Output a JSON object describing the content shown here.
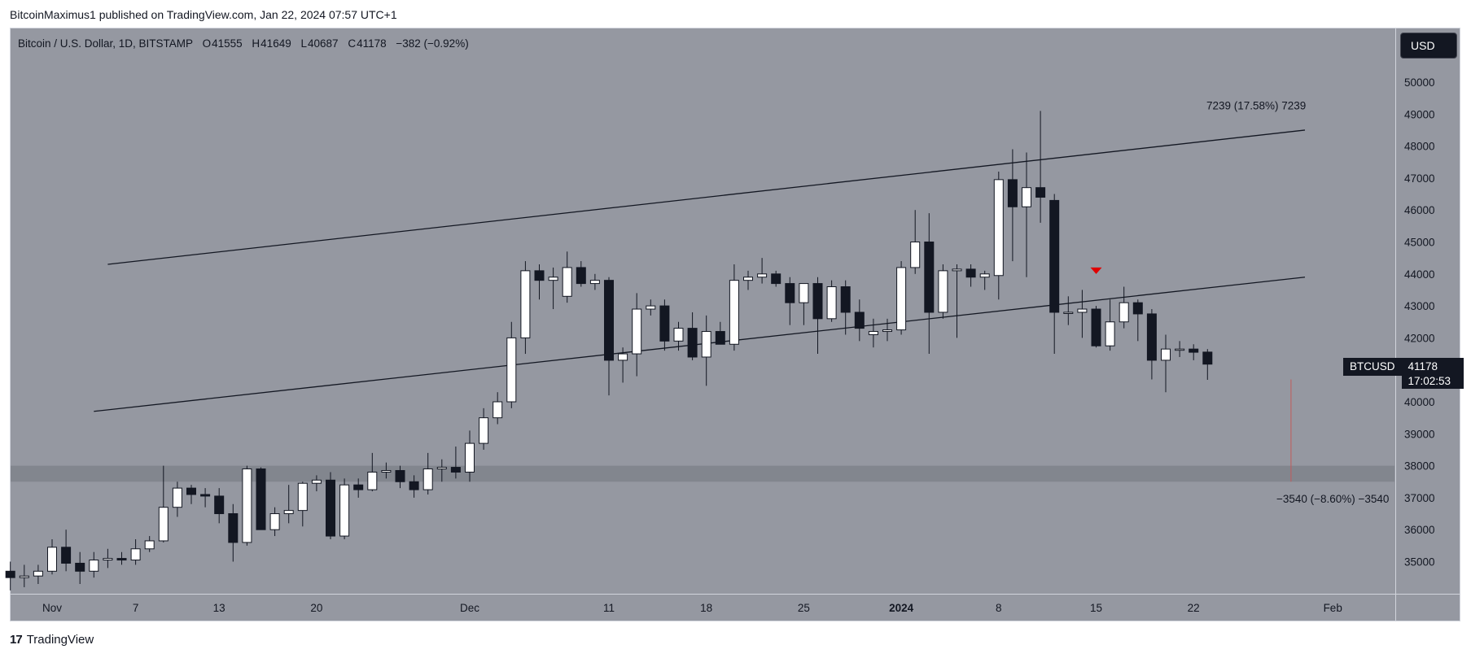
{
  "header": {
    "published_line": "BitcoinMaximus1 published on TradingView.com, Jan 22, 2024 07:57 UTC+1"
  },
  "legend": {
    "symbol_line": "Bitcoin / U.S. Dollar, 1D, BITSTAMP",
    "o_label": "O",
    "o_value": "41555",
    "h_label": "H",
    "h_value": "41649",
    "l_label": "L",
    "l_value": "40687",
    "c_label": "C",
    "c_value": "41178",
    "change": "−382 (−0.92%)"
  },
  "currency_button": "USD",
  "price_tag": {
    "symbol": "BTCUSD",
    "price": "41178",
    "countdown": "17:02:53"
  },
  "footer": {
    "logo_mark": "17",
    "logo_text": "TradingView"
  },
  "colors": {
    "background": "#9598a1",
    "bull_body": "#ffffff",
    "bear_body": "#131722",
    "support_zone": "#7f828b",
    "marker": "#e00000",
    "measure_line": "#c25b5b"
  },
  "chart_data": {
    "type": "candlestick",
    "ylim": [
      33800,
      51200
    ],
    "y_ticks": [
      "35000",
      "36000",
      "37000",
      "38000",
      "39000",
      "40000",
      "41000",
      "42000",
      "43000",
      "44000",
      "45000",
      "46000",
      "47000",
      "48000",
      "49000",
      "50000"
    ],
    "x_ticks": [
      {
        "label": "Nov",
        "day": 0,
        "bold": false
      },
      {
        "label": "7",
        "day": 6,
        "bold": false
      },
      {
        "label": "13",
        "day": 12,
        "bold": false
      },
      {
        "label": "20",
        "day": 19,
        "bold": false
      },
      {
        "label": "Dec",
        "day": 30,
        "bold": false
      },
      {
        "label": "11",
        "day": 40,
        "bold": false
      },
      {
        "label": "18",
        "day": 47,
        "bold": false
      },
      {
        "label": "25",
        "day": 54,
        "bold": false
      },
      {
        "label": "2024",
        "day": 61,
        "bold": true
      },
      {
        "label": "8",
        "day": 68,
        "bold": false
      },
      {
        "label": "15",
        "day": 75,
        "bold": false
      },
      {
        "label": "22",
        "day": 82,
        "bold": false
      },
      {
        "label": "Feb",
        "day": 92,
        "bold": false
      }
    ],
    "first_day": -3,
    "candles": [
      [
        34700,
        35000,
        34100,
        34500
      ],
      [
        34500,
        34900,
        34200,
        34550
      ],
      [
        34550,
        34900,
        34300,
        34700
      ],
      [
        34700,
        35700,
        34600,
        35450
      ],
      [
        35450,
        36000,
        34700,
        34950
      ],
      [
        34950,
        35300,
        34300,
        34700
      ],
      [
        34700,
        35300,
        34500,
        35050
      ],
      [
        35050,
        35400,
        34800,
        35100
      ],
      [
        35100,
        35300,
        34900,
        35050
      ],
      [
        35050,
        35700,
        34900,
        35400
      ],
      [
        35400,
        35800,
        35300,
        35650
      ],
      [
        35650,
        38000,
        35600,
        36700
      ],
      [
        36700,
        37500,
        36400,
        37300
      ],
      [
        37300,
        37400,
        36800,
        37100
      ],
      [
        37100,
        37300,
        36700,
        37050
      ],
      [
        37050,
        37300,
        36200,
        36500
      ],
      [
        36500,
        36800,
        35000,
        35600
      ],
      [
        35600,
        38000,
        35500,
        37900
      ],
      [
        37900,
        37950,
        36100,
        36000
      ],
      [
        36000,
        36700,
        35800,
        36500
      ],
      [
        36500,
        37400,
        36200,
        36600
      ],
      [
        36600,
        37500,
        36100,
        37450
      ],
      [
        37450,
        37700,
        37200,
        37550
      ],
      [
        37550,
        37800,
        35700,
        35800
      ],
      [
        35800,
        37600,
        35700,
        37400
      ],
      [
        37400,
        37600,
        37000,
        37250
      ],
      [
        37250,
        38400,
        37200,
        37800
      ],
      [
        37800,
        38100,
        37600,
        37850
      ],
      [
        37850,
        38000,
        37300,
        37500
      ],
      [
        37500,
        37700,
        37000,
        37250
      ],
      [
        37250,
        38400,
        37100,
        37900
      ],
      [
        37900,
        38200,
        37500,
        37950
      ],
      [
        37950,
        38600,
        37600,
        37800
      ],
      [
        37800,
        39100,
        37500,
        38700
      ],
      [
        38700,
        39800,
        38500,
        39500
      ],
      [
        39500,
        40300,
        39300,
        40000
      ],
      [
        40000,
        42500,
        39800,
        42000
      ],
      [
        42000,
        44400,
        41500,
        44100
      ],
      [
        44100,
        44300,
        43200,
        43800
      ],
      [
        43800,
        44200,
        42900,
        43900
      ],
      [
        43300,
        44700,
        43100,
        44200
      ],
      [
        44200,
        44400,
        43600,
        43700
      ],
      [
        43700,
        44000,
        43500,
        43800
      ],
      [
        43800,
        43900,
        40200,
        41300
      ],
      [
        41300,
        41700,
        40600,
        41500
      ],
      [
        41500,
        43400,
        40800,
        42900
      ],
      [
        42900,
        43200,
        42700,
        43000
      ],
      [
        43000,
        43200,
        41600,
        41900
      ],
      [
        41900,
        42500,
        41600,
        42300
      ],
      [
        42300,
        42800,
        41300,
        41400
      ],
      [
        41400,
        42700,
        40500,
        42200
      ],
      [
        42200,
        42500,
        41800,
        41800
      ],
      [
        41800,
        44300,
        41600,
        43800
      ],
      [
        43800,
        44100,
        43500,
        43900
      ],
      [
        43900,
        44500,
        43700,
        44000
      ],
      [
        44000,
        44100,
        43600,
        43700
      ],
      [
        43700,
        43900,
        42400,
        43100
      ],
      [
        43100,
        43600,
        42400,
        43700
      ],
      [
        43700,
        43900,
        41500,
        42600
      ],
      [
        42600,
        43800,
        42500,
        43600
      ],
      [
        43600,
        43800,
        42100,
        42800
      ],
      [
        42800,
        43200,
        41900,
        42300
      ],
      [
        42100,
        42600,
        41700,
        42200
      ],
      [
        42200,
        42600,
        41900,
        42250
      ],
      [
        42250,
        44400,
        42100,
        44200
      ],
      [
        44200,
        46000,
        44000,
        45000
      ],
      [
        45000,
        45900,
        41500,
        42800
      ],
      [
        42800,
        44300,
        42600,
        44100
      ],
      [
        44100,
        44300,
        42000,
        44150
      ],
      [
        44150,
        44300,
        43600,
        43900
      ],
      [
        43900,
        44100,
        43500,
        44000
      ],
      [
        43950,
        47200,
        43200,
        46950
      ],
      [
        46950,
        47900,
        44400,
        46100
      ],
      [
        46100,
        47800,
        43900,
        46700
      ],
      [
        46700,
        49100,
        45600,
        46400
      ],
      [
        46300,
        46500,
        41500,
        42800
      ],
      [
        42800,
        43300,
        42400,
        42800
      ],
      [
        42800,
        43500,
        42000,
        42900
      ],
      [
        42900,
        43000,
        41700,
        41750
      ],
      [
        41750,
        43200,
        41600,
        42500
      ],
      [
        42500,
        43600,
        42300,
        43100
      ],
      [
        43100,
        43200,
        41900,
        42750
      ],
      [
        42750,
        42900,
        40700,
        41300
      ],
      [
        41300,
        42100,
        40300,
        41650
      ],
      [
        41650,
        41900,
        41400,
        41650
      ],
      [
        41650,
        41800,
        41300,
        41550
      ],
      [
        41555,
        41649,
        40687,
        41178
      ]
    ],
    "channel": {
      "upper": [
        [
          4,
          44300
        ],
        [
          90,
          48500
        ]
      ],
      "lower": [
        [
          3,
          39700
        ],
        [
          90,
          43900
        ]
      ]
    },
    "support_zone": [
      37500,
      38000
    ],
    "marker": {
      "day": 75,
      "price": 44100
    },
    "measure_line": {
      "day": 89,
      "from": 40700,
      "to": 37500
    },
    "annotations": [
      {
        "text": "7239 (17.58%) 7239",
        "day": 86.5,
        "price": 49150
      },
      {
        "text": "−3540 (−8.60%) −3540",
        "day": 92,
        "price": 36850
      }
    ]
  }
}
